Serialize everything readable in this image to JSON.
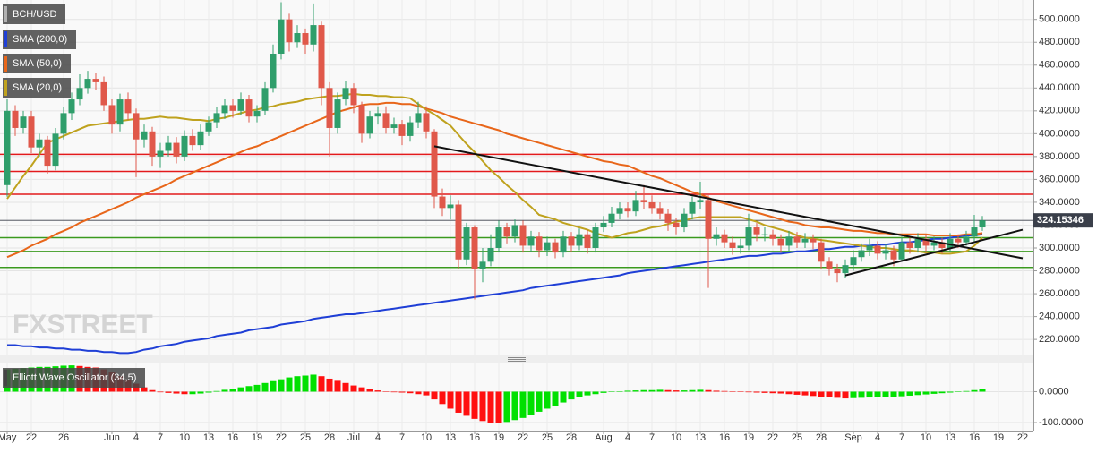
{
  "chart_data": {
    "type": "candlestick",
    "symbol": "BCH/USD",
    "watermark": "FXSTREET",
    "categories": [
      "May",
      null,
      null,
      "22",
      null,
      null,
      null,
      "26",
      null,
      null,
      null,
      null,
      null,
      "Jun",
      null,
      null,
      "4",
      null,
      null,
      "7",
      null,
      null,
      "10",
      null,
      null,
      "13",
      null,
      null,
      "16",
      null,
      null,
      "19",
      null,
      null,
      "22",
      null,
      null,
      "25",
      null,
      null,
      "28",
      null,
      null,
      "Jul",
      null,
      null,
      "4",
      null,
      null,
      "7",
      null,
      null,
      "10",
      null,
      null,
      "13",
      null,
      null,
      "16",
      null,
      null,
      "19",
      null,
      null,
      "22",
      null,
      null,
      "25",
      null,
      null,
      "28",
      null,
      null,
      null,
      "Aug",
      null,
      null,
      "4",
      null,
      null,
      "7",
      null,
      null,
      "10",
      null,
      null,
      "13",
      null,
      null,
      "16",
      null,
      null,
      "19",
      null,
      null,
      "22",
      null,
      null,
      "25",
      null,
      null,
      "28",
      null,
      null,
      null,
      "Sep",
      null,
      null,
      "4",
      null,
      null,
      "7",
      null,
      null,
      "10",
      null,
      null,
      "13",
      null,
      null,
      "16",
      null,
      null,
      "19",
      null,
      null,
      "22"
    ],
    "open": [
      355,
      420,
      405,
      415,
      388,
      395,
      372,
      400,
      418,
      430,
      440,
      448,
      445,
      425,
      408,
      430,
      418,
      395,
      402,
      380,
      385,
      392,
      380,
      398,
      390,
      402,
      410,
      418,
      425,
      420,
      430,
      415,
      420,
      440,
      470,
      500,
      480,
      488,
      478,
      495,
      440,
      405,
      430,
      440,
      425,
      400,
      415,
      418,
      405,
      408,
      398,
      410,
      418,
      402,
      345,
      335,
      338,
      290,
      318,
      282,
      288,
      300,
      318,
      310,
      320,
      302,
      310,
      298,
      305,
      296,
      310,
      302,
      312,
      300,
      318,
      322,
      330,
      335,
      332,
      342,
      340,
      335,
      330,
      322,
      318,
      330,
      340,
      342,
      308,
      312,
      305,
      300,
      302,
      318,
      312,
      312,
      308,
      302,
      310,
      305,
      308,
      305,
      288,
      282,
      278,
      285,
      292,
      298,
      302,
      295,
      298,
      290,
      305,
      300,
      308,
      302,
      305,
      300,
      308,
      305,
      310,
      318,
      null,
      null,
      null,
      null,
      null
    ],
    "high": [
      430,
      425,
      420,
      420,
      400,
      398,
      405,
      423,
      436,
      452,
      455,
      453,
      450,
      430,
      435,
      436,
      422,
      408,
      406,
      392,
      398,
      397,
      403,
      404,
      408,
      415,
      423,
      430,
      430,
      436,
      434,
      425,
      445,
      478,
      515,
      505,
      495,
      492,
      514,
      498,
      445,
      436,
      446,
      444,
      428,
      420,
      424,
      424,
      414,
      412,
      415,
      428,
      424,
      404,
      352,
      346,
      342,
      322,
      320,
      300,
      312,
      324,
      322,
      325,
      324,
      315,
      314,
      310,
      308,
      315,
      314,
      317,
      316,
      322,
      328,
      336,
      340,
      340,
      350,
      355,
      346,
      340,
      334,
      326,
      335,
      345,
      358,
      346,
      318,
      316,
      310,
      308,
      330,
      322,
      318,
      316,
      312,
      315,
      314,
      313,
      312,
      308,
      292,
      286,
      290,
      298,
      304,
      308,
      306,
      303,
      302,
      310,
      309,
      313,
      312,
      310,
      309,
      313,
      312,
      315,
      329,
      328,
      null,
      null,
      null,
      null,
      null
    ],
    "low": [
      345,
      398,
      400,
      383,
      380,
      365,
      368,
      395,
      412,
      425,
      435,
      438,
      420,
      400,
      402,
      412,
      362,
      388,
      372,
      370,
      380,
      374,
      376,
      385,
      386,
      398,
      405,
      413,
      414,
      416,
      410,
      410,
      416,
      436,
      465,
      472,
      475,
      470,
      472,
      425,
      380,
      400,
      425,
      418,
      392,
      396,
      408,
      400,
      400,
      390,
      393,
      405,
      396,
      335,
      328,
      325,
      282,
      285,
      255,
      270,
      284,
      296,
      304,
      305,
      296,
      297,
      292,
      293,
      291,
      292,
      297,
      298,
      295,
      296,
      314,
      318,
      325,
      327,
      328,
      334,
      330,
      325,
      315,
      312,
      314,
      325,
      334,
      265,
      302,
      300,
      294,
      295,
      298,
      306,
      306,
      302,
      296,
      297,
      300,
      300,
      299,
      282,
      276,
      270,
      274,
      280,
      288,
      293,
      290,
      290,
      284,
      288,
      295,
      296,
      297,
      298,
      295,
      296,
      300,
      302,
      306,
      315,
      null,
      null,
      null,
      null,
      null
    ],
    "close": [
      420,
      405,
      415,
      388,
      395,
      372,
      400,
      418,
      430,
      440,
      448,
      445,
      425,
      408,
      430,
      418,
      395,
      402,
      380,
      385,
      392,
      380,
      398,
      390,
      402,
      410,
      418,
      425,
      420,
      430,
      415,
      420,
      440,
      470,
      500,
      480,
      488,
      478,
      495,
      440,
      405,
      430,
      440,
      425,
      400,
      415,
      418,
      405,
      408,
      398,
      410,
      418,
      402,
      345,
      335,
      338,
      290,
      318,
      282,
      288,
      300,
      318,
      310,
      320,
      302,
      310,
      298,
      305,
      296,
      310,
      302,
      312,
      300,
      318,
      322,
      330,
      335,
      332,
      342,
      340,
      335,
      330,
      322,
      318,
      330,
      340,
      342,
      308,
      312,
      305,
      300,
      302,
      318,
      312,
      312,
      308,
      302,
      310,
      305,
      308,
      305,
      288,
      282,
      278,
      285,
      292,
      298,
      302,
      295,
      298,
      290,
      305,
      300,
      308,
      302,
      305,
      300,
      308,
      305,
      310,
      318,
      324.15346,
      null,
      null,
      null,
      null,
      null
    ],
    "up_color": "#2f9e6b",
    "down_color": "#e0584a",
    "last_price": 324.15346,
    "last_price_color": "#3a3f4a",
    "series": [
      {
        "name": "SMA (200,0)",
        "color": "#1f3fd6",
        "values": [
          215,
          215,
          214,
          214,
          213,
          213,
          212,
          212,
          211,
          211,
          210,
          210,
          209,
          209,
          208,
          208,
          209,
          211,
          212,
          214,
          215,
          216,
          218,
          219,
          220,
          221,
          223,
          224,
          225,
          226,
          228,
          229,
          230,
          231,
          233,
          234,
          235,
          236,
          238,
          239,
          240,
          241,
          242,
          242,
          243,
          244,
          245,
          246,
          247,
          248,
          249,
          250,
          251,
          252,
          253,
          254,
          255,
          256,
          257,
          258,
          259,
          260,
          261,
          262,
          263,
          265,
          266,
          267,
          268,
          269,
          270,
          271,
          272,
          273,
          274,
          275,
          276,
          278,
          279,
          280,
          281,
          282,
          283,
          284,
          285,
          286,
          287,
          288,
          289,
          290,
          291,
          292,
          293,
          293,
          294,
          295,
          295,
          296,
          297,
          297,
          298,
          299,
          299,
          300,
          301,
          301,
          302,
          302,
          303,
          303,
          304,
          305,
          305,
          306,
          307,
          308,
          308,
          309,
          310,
          311,
          311,
          312,
          null,
          null,
          null,
          null,
          null
        ]
      },
      {
        "name": "SMA (50,0)",
        "color": "#e8661a",
        "values": [
          292,
          295,
          298,
          302,
          305,
          308,
          312,
          315,
          318,
          322,
          325,
          328,
          331,
          334,
          337,
          340,
          344,
          347,
          350,
          353,
          356,
          360,
          363,
          366,
          369,
          372,
          375,
          378,
          381,
          384,
          387,
          389,
          392,
          395,
          398,
          401,
          404,
          407,
          410,
          413,
          416,
          419,
          421,
          423,
          425,
          426,
          426,
          427,
          427,
          426,
          426,
          424,
          422,
          420,
          418,
          415,
          413,
          411,
          409,
          407,
          405,
          403,
          400,
          398,
          396,
          394,
          392,
          390,
          388,
          386,
          384,
          382,
          380,
          378,
          376,
          375,
          373,
          372,
          369,
          366,
          363,
          361,
          358,
          355,
          352,
          349,
          347,
          344,
          341,
          339,
          337,
          335,
          333,
          331,
          329,
          327,
          325,
          323,
          322,
          320,
          319,
          318,
          318,
          317,
          316,
          315,
          315,
          314,
          313,
          313,
          312,
          312,
          312,
          312,
          312,
          311,
          311,
          311,
          311,
          312,
          312,
          313,
          null,
          null,
          null,
          null,
          null
        ]
      },
      {
        "name": "SMA (20,0)",
        "color": "#bfa21e",
        "values": [
          343,
          353,
          363,
          372,
          382,
          392,
          395,
          398,
          401,
          404,
          407,
          408,
          409,
          410,
          411,
          412,
          413,
          413,
          414,
          415,
          414,
          414,
          413,
          412,
          412,
          411,
          413,
          414,
          416,
          418,
          420,
          421,
          423,
          424,
          426,
          427,
          428,
          430,
          431,
          432,
          433,
          433,
          434,
          435,
          434,
          434,
          433,
          433,
          432,
          432,
          431,
          426,
          421,
          417,
          412,
          407,
          399,
          391,
          384,
          376,
          368,
          362,
          355,
          349,
          342,
          336,
          329,
          327,
          325,
          322,
          320,
          318,
          316,
          313,
          311,
          309,
          311,
          313,
          314,
          316,
          318,
          319,
          321,
          323,
          324,
          326,
          327,
          327,
          327,
          327,
          327,
          327,
          325,
          323,
          320,
          318,
          316,
          314,
          311,
          309,
          308,
          307,
          306,
          305,
          304,
          303,
          302,
          301,
          300,
          300,
          299,
          298,
          298,
          297,
          296,
          296,
          295,
          295,
          296,
          297,
          302,
          309,
          null,
          null,
          null,
          null,
          null
        ]
      }
    ],
    "levels": [
      {
        "value": 382,
        "color": "#e31a1c"
      },
      {
        "value": 367,
        "color": "#e31a1c"
      },
      {
        "value": 347,
        "color": "#e31a1c"
      },
      {
        "value": 309,
        "color": "#3a9a1e"
      },
      {
        "value": 297,
        "color": "#3a9a1e"
      },
      {
        "value": 283,
        "color": "#3a9a1e"
      }
    ],
    "trendlines": [
      {
        "x": [
          53,
          126
        ],
        "values": [
          389,
          291
        ],
        "color": "#111111"
      },
      {
        "x": [
          104,
          126
        ],
        "values": [
          276,
          316
        ],
        "color": "#111111"
      }
    ],
    "ylim": [
      206,
      517
    ],
    "yticks": [
      {
        "value": 220,
        "label": "220.0000"
      },
      {
        "value": 240,
        "label": "240.0000"
      },
      {
        "value": 260,
        "label": "260.0000"
      },
      {
        "value": 280,
        "label": "280.0000"
      },
      {
        "value": 300,
        "label": "300.0000"
      },
      {
        "value": 320,
        "label": "320.0000"
      },
      {
        "value": 340,
        "label": "340.0000"
      },
      {
        "value": 360,
        "label": "360.0000"
      },
      {
        "value": 380,
        "label": "380.0000"
      },
      {
        "value": 400,
        "label": "400.0000"
      },
      {
        "value": 420,
        "label": "420.0000"
      },
      {
        "value": 440,
        "label": "440.0000"
      },
      {
        "value": 460,
        "label": "460.0000"
      },
      {
        "value": 480,
        "label": "480.0000"
      },
      {
        "value": 500,
        "label": "500.0000"
      }
    ],
    "grid": true,
    "oscillator": {
      "type": "bar",
      "name": "Elliott Wave Oscillator (34,5)",
      "up_color": "#00e000",
      "down_color": "#ff1010",
      "values": [
        72,
        74,
        76,
        78,
        80,
        80,
        82,
        84,
        85,
        83,
        80,
        78,
        72,
        62,
        50,
        38,
        26,
        14,
        5,
        -2,
        -4,
        -6,
        -8,
        -8,
        -6,
        -3,
        2,
        6,
        10,
        14,
        18,
        22,
        28,
        34,
        40,
        46,
        50,
        52,
        55,
        50,
        42,
        35,
        28,
        20,
        14,
        8,
        4,
        1,
        -2,
        -3,
        -5,
        -8,
        -12,
        -25,
        -40,
        -55,
        -68,
        -78,
        -88,
        -95,
        -100,
        -102,
        -98,
        -92,
        -85,
        -75,
        -65,
        -55,
        -45,
        -35,
        -25,
        -18,
        -12,
        -8,
        -4,
        -1,
        1,
        3,
        4,
        5,
        5,
        6,
        5,
        4,
        4,
        5,
        6,
        5,
        3,
        2,
        1,
        -1,
        -2,
        -3,
        -4,
        -5,
        -6,
        -8,
        -10,
        -12,
        -14,
        -16,
        -18,
        -20,
        -22,
        -21,
        -20,
        -19,
        -18,
        -17,
        -16,
        -15,
        -13,
        -11,
        -9,
        -7,
        -5,
        -3,
        -1,
        2,
        5,
        8,
        null,
        null,
        null,
        null,
        null
      ],
      "ylim": [
        -126,
        94
      ],
      "yticks": [
        {
          "value": 0,
          "label": "0.0000"
        },
        {
          "value": -100,
          "label": "-100.0000"
        }
      ]
    }
  }
}
